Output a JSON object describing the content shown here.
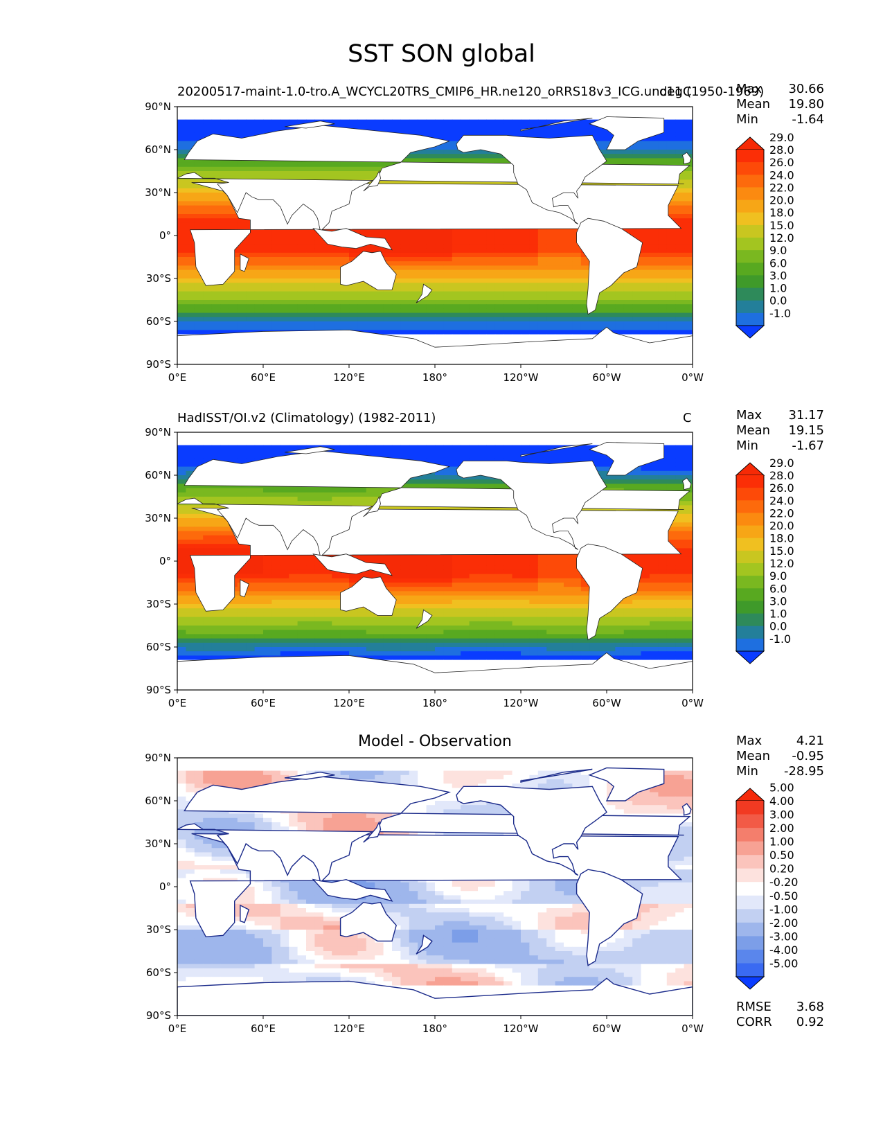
{
  "title": "SST SON global",
  "x_tick_labels": [
    "0°E",
    "60°E",
    "120°E",
    "180°",
    "120°W",
    "60°W",
    "0°W"
  ],
  "y_tick_labels": [
    "90°N",
    "60°N",
    "30°N",
    "0°",
    "30°S",
    "60°S",
    "90°S"
  ],
  "panels": [
    {
      "title_left": "20200517-maint-1.0-tro.A_WCYCL20TRS_CMIP6_HR.ne120_oRRS18v3_ICG.unc11 (1950-1969)",
      "title_right": "degC",
      "stats": {
        "max_label": "Max",
        "max": "30.66",
        "mean_label": "Mean",
        "mean": "19.80",
        "min_label": "Min",
        "min": "-1.64"
      }
    },
    {
      "title_left": "HadISST/OI.v2 (Climatology) (1982-2011)",
      "title_right": "C",
      "stats": {
        "max_label": "Max",
        "max": "31.17",
        "mean_label": "Mean",
        "mean": "19.15",
        "min_label": "Min",
        "min": "-1.67"
      }
    },
    {
      "title_center": "Model - Observation",
      "stats": {
        "max_label": "Max",
        "max": "4.21",
        "mean_label": "Mean",
        "mean": "-0.95",
        "min_label": "Min",
        "min": "-28.95"
      },
      "metrics": {
        "rmse_label": "RMSE",
        "rmse": "3.68",
        "corr_label": "CORR",
        "corr": "0.92"
      }
    }
  ],
  "chart_data": [
    {
      "type": "heatmap",
      "name": "model",
      "x_range": [
        0,
        360
      ],
      "y_range": [
        -90,
        90
      ],
      "colorbar_levels": [
        "-1.0",
        "0.0",
        "1.0",
        "3.0",
        "6.0",
        "9.0",
        "12.0",
        "15.0",
        "18.0",
        "20.0",
        "22.0",
        "24.0",
        "26.0",
        "28.0",
        "29.0"
      ],
      "colorbar_colors": [
        "#0a3cff",
        "#1e6fe0",
        "#237f9a",
        "#2e8a5a",
        "#3f9a2a",
        "#58a920",
        "#7ab820",
        "#a3c520",
        "#c9c620",
        "#f0c020",
        "#f7a616",
        "#fb8a10",
        "#fd6a0c",
        "#fd4a08",
        "#fb2e06",
        "#f62a06"
      ],
      "extend": "both",
      "units": "degC"
    },
    {
      "type": "heatmap",
      "name": "observation",
      "x_range": [
        0,
        360
      ],
      "y_range": [
        -90,
        90
      ],
      "colorbar_levels": [
        "-1.0",
        "0.0",
        "1.0",
        "3.0",
        "6.0",
        "9.0",
        "12.0",
        "15.0",
        "18.0",
        "20.0",
        "22.0",
        "24.0",
        "26.0",
        "28.0",
        "29.0"
      ],
      "colorbar_colors": [
        "#0a3cff",
        "#1e6fe0",
        "#237f9a",
        "#2e8a5a",
        "#3f9a2a",
        "#58a920",
        "#7ab820",
        "#a3c520",
        "#c9c620",
        "#f0c020",
        "#f7a616",
        "#fb8a10",
        "#fd6a0c",
        "#fd4a08",
        "#fb2e06",
        "#f62a06"
      ],
      "extend": "both",
      "units": "C"
    },
    {
      "type": "heatmap",
      "name": "difference",
      "x_range": [
        0,
        360
      ],
      "y_range": [
        -90,
        90
      ],
      "colorbar_levels": [
        "-5.00",
        "-4.00",
        "-3.00",
        "-2.00",
        "-1.00",
        "-0.50",
        "-0.20",
        "0.20",
        "0.50",
        "1.00",
        "2.00",
        "3.00",
        "4.00",
        "5.00"
      ],
      "colorbar_colors": [
        "#0a3cff",
        "#3a6af2",
        "#5a86ec",
        "#7c9ee8",
        "#9eb6ec",
        "#c2d0f2",
        "#e2e8fa",
        "#ffffff",
        "#fde2de",
        "#fbc4bc",
        "#f7a294",
        "#f47e6c",
        "#f25a46",
        "#f23a22",
        "#f52a0a"
      ],
      "extend": "both"
    }
  ]
}
